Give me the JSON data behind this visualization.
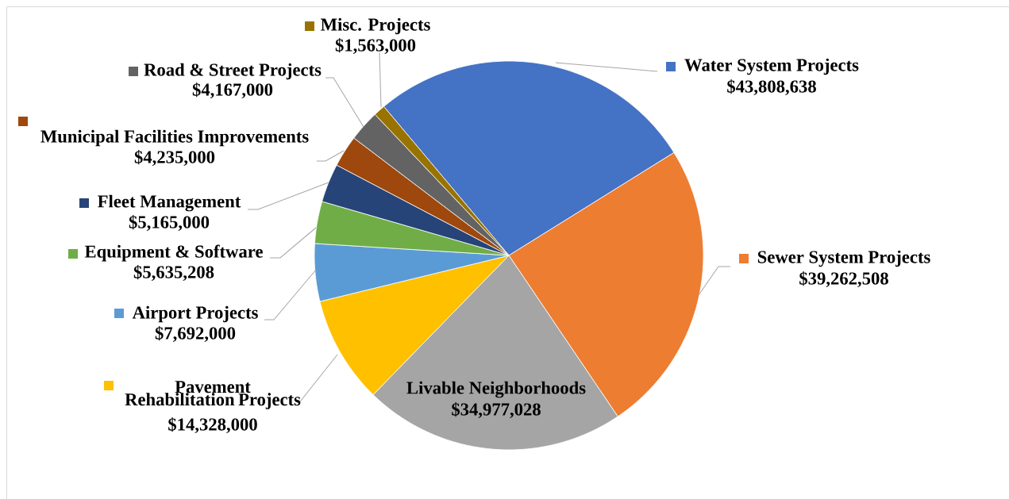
{
  "chart_data": {
    "type": "pie",
    "categories": [
      "Water System Projects",
      "Sewer System Projects",
      "Livable Neighborhoods",
      "Pavement Rehabilitation Projects",
      "Airport Projects",
      "Equipment & Software",
      "Fleet Management",
      "Municipal Facilities Improvements",
      "Road & Street Projects",
      "Misc. Projects"
    ],
    "values": [
      43808638,
      39262508,
      34977028,
      14328000,
      7692000,
      5635208,
      5165000,
      4235000,
      4167000,
      1563000
    ],
    "colors": [
      "#4472c4",
      "#ed7d31",
      "#a5a5a5",
      "#ffc000",
      "#5b9bd5",
      "#70ad47",
      "#264478",
      "#9e480e",
      "#636363",
      "#997300"
    ],
    "value_labels": [
      "$43,808,638",
      "$39,262,508",
      "$34,977,028",
      "$14,328,000",
      "$7,692,000",
      "$5,635,208",
      "$5,165,000",
      "$4,235,000",
      "$4,167,000",
      "$1,563,000"
    ],
    "legend": "left"
  }
}
